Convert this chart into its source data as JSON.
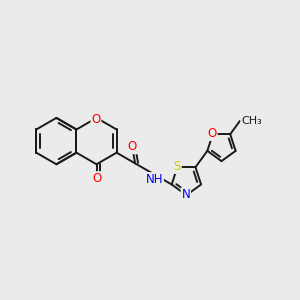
{
  "background_color": "#ebebeb",
  "bond_color": "#1a1a1a",
  "atom_colors": {
    "O": "#ff0000",
    "N": "#0000ee",
    "S": "#cccc00",
    "C": "#1a1a1a",
    "H": "#1a1a1a"
  },
  "bond_width": 1.4,
  "font_size": 8.5,
  "figsize": [
    3.0,
    3.0
  ],
  "dpi": 100,
  "xlim": [
    0,
    10
  ],
  "ylim": [
    0,
    10
  ]
}
